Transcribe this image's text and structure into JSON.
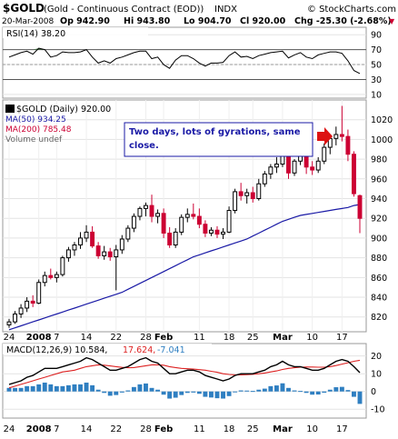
{
  "header": {
    "symbol": "$GOLD",
    "name": "(Gold - Continuous Contract (EOD))",
    "exchange": "INDX",
    "brand": "© StockCharts.com",
    "date": "20-Mar-2008",
    "op": "Op 942.90",
    "hi": "Hi 943.80",
    "lo": "Lo 904.70",
    "cl": "Cl 920.00",
    "chg": "Chg -25.30 (-2.68%)",
    "chg_marker": "▼"
  },
  "rsi_panel": {
    "label": "RSI(14) 38.20",
    "ticks": [
      "90",
      "70",
      "50",
      "30",
      "10"
    ]
  },
  "price_panel": {
    "title_label": "$GOLD (Daily) 920.00",
    "ma50_label": "MA(50) 934.25",
    "ma200_label": "MA(200) 785.48",
    "volume_label": "Volume undef",
    "annotation_line1": "Two days, lots of gyrations, same",
    "annotation_line2": "close.",
    "ticks": [
      "1020",
      "1000",
      "980",
      "960",
      "940",
      "920",
      "900",
      "880",
      "860",
      "840",
      "820"
    ]
  },
  "macd_panel": {
    "label": "MACD(12,26,9) 10.584,",
    "signal_value": "17.624,",
    "hist_value": "-7.041",
    "ticks": [
      "20",
      "10",
      "0",
      "-10"
    ]
  },
  "x_axis": {
    "labels": [
      "24",
      "2008",
      "7",
      "14",
      "22",
      "28",
      "Feb",
      "11",
      "18",
      "25",
      "Mar",
      "10",
      "17"
    ]
  },
  "colors": {
    "up_candle": "#000000",
    "down_candle": "#cc0033",
    "ma50": "#1a1aa6",
    "ma200": "#cc0033",
    "rsi_fill": "#3c7a3c",
    "macd": "#000000",
    "signal": "#dd2222",
    "hist": "#2f7fc1",
    "arrow": "#dd1111",
    "annotation_text": "#1a1aa6"
  },
  "chart_data": {
    "type": "candlestick",
    "x_dates": [
      "2007-12-24",
      "2007-12-26",
      "2007-12-27",
      "2007-12-28",
      "2007-12-31",
      "2008-01-02",
      "2008-01-03",
      "2008-01-04",
      "2008-01-07",
      "2008-01-08",
      "2008-01-09",
      "2008-01-10",
      "2008-01-11",
      "2008-01-14",
      "2008-01-15",
      "2008-01-16",
      "2008-01-17",
      "2008-01-18",
      "2008-01-22",
      "2008-01-23",
      "2008-01-24",
      "2008-01-25",
      "2008-01-28",
      "2008-01-29",
      "2008-01-30",
      "2008-01-31",
      "2008-02-01",
      "2008-02-04",
      "2008-02-05",
      "2008-02-06",
      "2008-02-07",
      "2008-02-08",
      "2008-02-11",
      "2008-02-12",
      "2008-02-13",
      "2008-02-14",
      "2008-02-15",
      "2008-02-19",
      "2008-02-20",
      "2008-02-21",
      "2008-02-22",
      "2008-02-25",
      "2008-02-26",
      "2008-02-27",
      "2008-02-28",
      "2008-02-29",
      "2008-03-03",
      "2008-03-04",
      "2008-03-05",
      "2008-03-06",
      "2008-03-07",
      "2008-03-10",
      "2008-03-11",
      "2008-03-12",
      "2008-03-13",
      "2008-03-14",
      "2008-03-17",
      "2008-03-18",
      "2008-03-19",
      "2008-03-20"
    ],
    "candles": [
      {
        "o": 812,
        "h": 818,
        "l": 809,
        "c": 815
      },
      {
        "o": 815,
        "h": 826,
        "l": 813,
        "c": 823
      },
      {
        "o": 823,
        "h": 833,
        "l": 819,
        "c": 829
      },
      {
        "o": 829,
        "h": 840,
        "l": 825,
        "c": 836
      },
      {
        "o": 836,
        "h": 842,
        "l": 830,
        "c": 834
      },
      {
        "o": 834,
        "h": 858,
        "l": 833,
        "c": 855
      },
      {
        "o": 855,
        "h": 866,
        "l": 851,
        "c": 862
      },
      {
        "o": 862,
        "h": 869,
        "l": 858,
        "c": 860
      },
      {
        "o": 860,
        "h": 866,
        "l": 855,
        "c": 863
      },
      {
        "o": 863,
        "h": 882,
        "l": 861,
        "c": 880
      },
      {
        "o": 880,
        "h": 891,
        "l": 876,
        "c": 888
      },
      {
        "o": 888,
        "h": 896,
        "l": 882,
        "c": 893
      },
      {
        "o": 893,
        "h": 906,
        "l": 889,
        "c": 900
      },
      {
        "o": 900,
        "h": 913,
        "l": 896,
        "c": 906
      },
      {
        "o": 906,
        "h": 912,
        "l": 890,
        "c": 892
      },
      {
        "o": 892,
        "h": 896,
        "l": 879,
        "c": 882
      },
      {
        "o": 882,
        "h": 892,
        "l": 878,
        "c": 886
      },
      {
        "o": 886,
        "h": 890,
        "l": 877,
        "c": 881
      },
      {
        "o": 881,
        "h": 893,
        "l": 847,
        "c": 888
      },
      {
        "o": 888,
        "h": 903,
        "l": 884,
        "c": 899
      },
      {
        "o": 899,
        "h": 913,
        "l": 896,
        "c": 910
      },
      {
        "o": 910,
        "h": 925,
        "l": 906,
        "c": 922
      },
      {
        "o": 922,
        "h": 932,
        "l": 918,
        "c": 930
      },
      {
        "o": 930,
        "h": 936,
        "l": 922,
        "c": 933
      },
      {
        "o": 933,
        "h": 944,
        "l": 916,
        "c": 922
      },
      {
        "o": 922,
        "h": 929,
        "l": 915,
        "c": 925
      },
      {
        "o": 925,
        "h": 930,
        "l": 900,
        "c": 905
      },
      {
        "o": 905,
        "h": 911,
        "l": 890,
        "c": 893
      },
      {
        "o": 893,
        "h": 910,
        "l": 890,
        "c": 906
      },
      {
        "o": 906,
        "h": 924,
        "l": 903,
        "c": 921
      },
      {
        "o": 921,
        "h": 930,
        "l": 916,
        "c": 924
      },
      {
        "o": 924,
        "h": 935,
        "l": 919,
        "c": 922
      },
      {
        "o": 922,
        "h": 930,
        "l": 910,
        "c": 914
      },
      {
        "o": 914,
        "h": 918,
        "l": 901,
        "c": 905
      },
      {
        "o": 905,
        "h": 911,
        "l": 902,
        "c": 908
      },
      {
        "o": 908,
        "h": 912,
        "l": 900,
        "c": 904
      },
      {
        "o": 904,
        "h": 910,
        "l": 899,
        "c": 906
      },
      {
        "o": 906,
        "h": 932,
        "l": 905,
        "c": 928
      },
      {
        "o": 928,
        "h": 950,
        "l": 925,
        "c": 947
      },
      {
        "o": 947,
        "h": 956,
        "l": 938,
        "c": 943
      },
      {
        "o": 943,
        "h": 950,
        "l": 935,
        "c": 946
      },
      {
        "o": 946,
        "h": 952,
        "l": 936,
        "c": 940
      },
      {
        "o": 940,
        "h": 960,
        "l": 938,
        "c": 955
      },
      {
        "o": 955,
        "h": 968,
        "l": 952,
        "c": 965
      },
      {
        "o": 965,
        "h": 975,
        "l": 960,
        "c": 972
      },
      {
        "o": 972,
        "h": 982,
        "l": 966,
        "c": 975
      },
      {
        "o": 975,
        "h": 992,
        "l": 972,
        "c": 988
      },
      {
        "o": 988,
        "h": 992,
        "l": 960,
        "c": 966
      },
      {
        "o": 966,
        "h": 980,
        "l": 963,
        "c": 978
      },
      {
        "o": 978,
        "h": 990,
        "l": 974,
        "c": 985
      },
      {
        "o": 985,
        "h": 989,
        "l": 965,
        "c": 972
      },
      {
        "o": 972,
        "h": 978,
        "l": 964,
        "c": 969
      },
      {
        "o": 969,
        "h": 982,
        "l": 966,
        "c": 978
      },
      {
        "o": 978,
        "h": 996,
        "l": 975,
        "c": 992
      },
      {
        "o": 992,
        "h": 1004,
        "l": 985,
        "c": 1001
      },
      {
        "o": 1001,
        "h": 1013,
        "l": 994,
        "c": 1005
      },
      {
        "o": 1005,
        "h": 1034,
        "l": 998,
        "c": 1003
      },
      {
        "o": 1003,
        "h": 1010,
        "l": 978,
        "c": 985
      },
      {
        "o": 985,
        "h": 988,
        "l": 942,
        "c": 945
      },
      {
        "o": 943,
        "h": 944,
        "l": 905,
        "c": 920
      }
    ],
    "ma50": [
      807,
      809,
      811,
      813,
      815,
      817,
      819,
      821,
      823,
      825,
      827,
      829,
      831,
      833,
      835,
      837,
      839,
      841,
      843,
      845,
      848,
      851,
      854,
      857,
      860,
      863,
      866,
      869,
      872,
      875,
      878,
      881,
      883,
      885,
      887,
      889,
      891,
      893,
      895,
      897,
      899,
      902,
      905,
      908,
      911,
      914,
      917,
      919,
      921,
      923,
      924,
      925,
      926,
      927,
      928,
      929,
      930,
      931,
      933,
      934
    ],
    "rsi": [
      60,
      63,
      66,
      68,
      64,
      72,
      70,
      60,
      62,
      67,
      66,
      66,
      67,
      70,
      60,
      52,
      55,
      52,
      58,
      60,
      63,
      66,
      68,
      68,
      58,
      60,
      50,
      45,
      56,
      62,
      62,
      58,
      52,
      48,
      52,
      52,
      53,
      62,
      67,
      60,
      61,
      58,
      62,
      64,
      66,
      67,
      68,
      59,
      63,
      66,
      60,
      58,
      63,
      65,
      67,
      67,
      65,
      55,
      42,
      38
    ],
    "macd": [
      4,
      5,
      6,
      8,
      9,
      11,
      13,
      13,
      13,
      14,
      15,
      16,
      17,
      19,
      18,
      16,
      14,
      12,
      12,
      13,
      14,
      16,
      18,
      19,
      17,
      16,
      13,
      10,
      10,
      11,
      12,
      12,
      11,
      9,
      8,
      7,
      6,
      7,
      9,
      10,
      10,
      10,
      11,
      12,
      14,
      15,
      17,
      15,
      14,
      14,
      13,
      12,
      12,
      13,
      15,
      17,
      18,
      17,
      14,
      10.6
    ],
    "signal": [
      2,
      3,
      4,
      5,
      6,
      7,
      8,
      9,
      10,
      11,
      11.5,
      12,
      13,
      14,
      14.5,
      15,
      14.8,
      14.4,
      14,
      13.6,
      13.4,
      13.5,
      14,
      14.5,
      15,
      15,
      14.8,
      14,
      13.5,
      13,
      12.8,
      12.6,
      12.3,
      12,
      11.4,
      10.8,
      10,
      9.6,
      9.4,
      9.4,
      9.5,
      9.7,
      10,
      10.4,
      11,
      11.6,
      12.4,
      13,
      13.4,
      13.7,
      13.8,
      13.8,
      13.7,
      13.7,
      14,
      14.6,
      15.4,
      16.2,
      17,
      17.6
    ]
  }
}
